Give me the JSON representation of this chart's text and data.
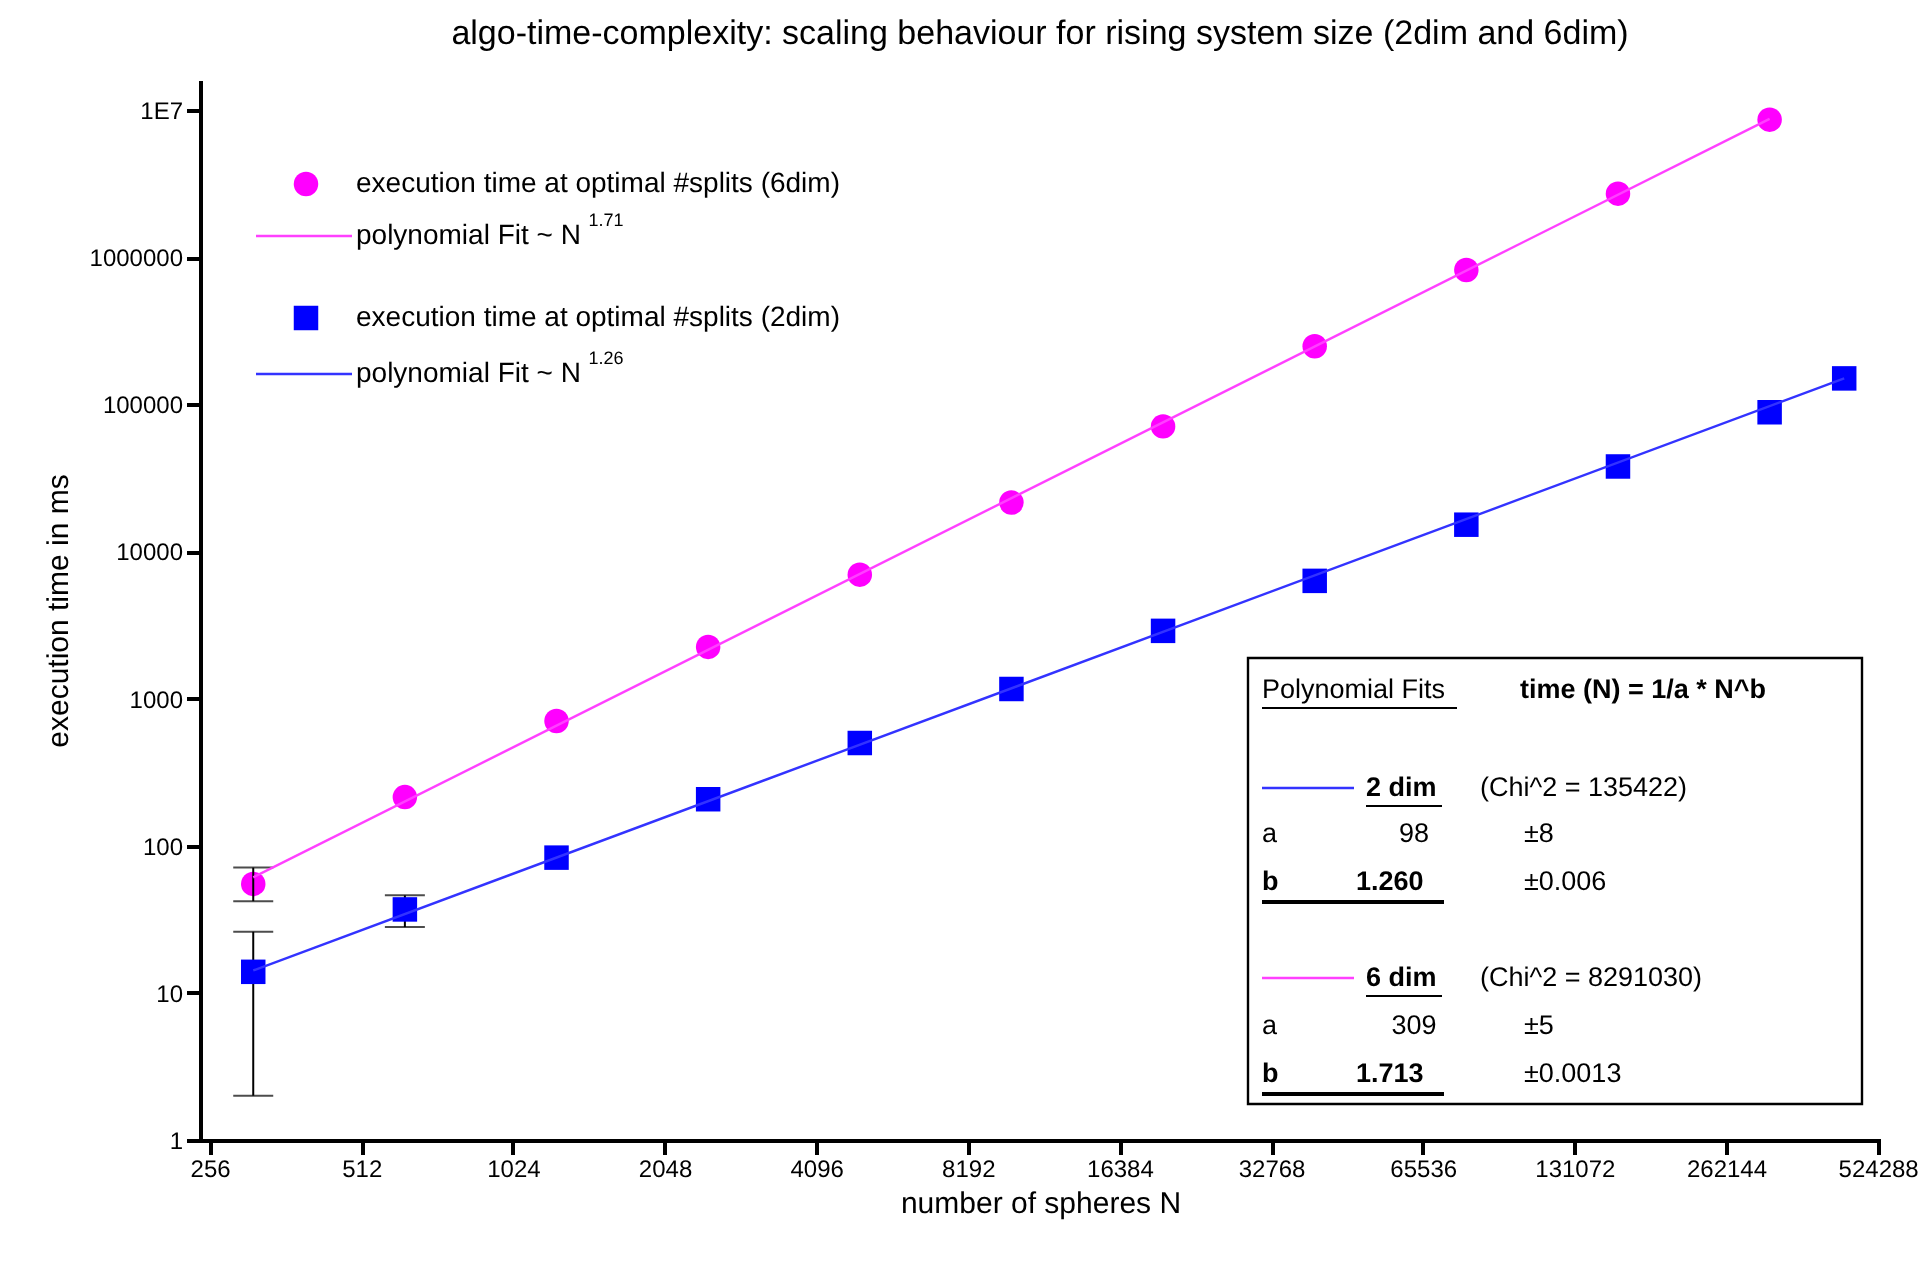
{
  "chart_data": {
    "type": "scatter",
    "title": "algo-time-complexity: scaling behaviour for rising system size (2dim and 6dim)",
    "xlabel": "number of spheres N",
    "ylabel": "execution time in ms",
    "log": "xy",
    "grid": false,
    "legend": "top left",
    "xlim": [
      245,
      530000
    ],
    "xticks": [
      256,
      512,
      1024,
      2048,
      4096,
      8192,
      16384,
      32768,
      65536,
      131072,
      262144,
      524288
    ],
    "ylim": [
      1,
      16000000
    ],
    "yticks": [
      1,
      10,
      100,
      1000,
      10000,
      100000,
      1000000,
      {
        "value": 10000000,
        "label": "1E7"
      }
    ],
    "series": [
      {
        "name": "execution time at optimal #splits (6dim)",
        "type": "scatter",
        "marker": "circle",
        "color": "#ff00ff",
        "x": [
          312.5,
          625,
          1250,
          2500,
          5000,
          10000,
          20000,
          40000,
          80000,
          160000,
          320000
        ],
        "values": [
          55,
          214,
          704,
          2245,
          6950,
          21500,
          70800,
          248000,
          818000,
          2700000,
          8600000
        ],
        "errors": [
          [
            42,
            71
          ],
          null,
          null,
          null,
          null,
          null,
          null,
          null,
          null,
          null,
          null
        ]
      },
      {
        "name": "polynomial Fit ~ N$^{1.71}$",
        "type": "line",
        "color": "#ff40ff",
        "x": [
          312.5,
          320000
        ],
        "values": [
          61,
          8700000
        ]
      },
      {
        "name": "execution time at optimal #splits (2dim)",
        "type": "scatter",
        "marker": "square",
        "color": "#0000ff",
        "x": [
          312.5,
          625,
          1250,
          2500,
          5000,
          10000,
          20000,
          40000,
          80000,
          160000,
          320000,
          450000
        ],
        "values": [
          13.9,
          36.9,
          83,
          207,
          499,
          1162,
          2886,
          6310,
          15200,
          37800,
          88300,
          150000
        ],
        "errors": [
          [
            2,
            26
          ],
          [
            28,
            46
          ],
          null,
          null,
          null,
          null,
          null,
          null,
          null,
          null,
          null,
          null
        ]
      },
      {
        "name": "polynomial Fit ~ N$^{1.26}$",
        "type": "line",
        "color": "#3333ff",
        "x": [
          312.5,
          450000
        ],
        "values": [
          14.2,
          150000
        ]
      }
    ],
    "annotations": [
      "Polynomial Fits",
      "time (N) = 1/a * N^b",
      "2 dim",
      "(Chi^2 = 135422)",
      "a",
      "98",
      "±8",
      "b",
      "1.260",
      "±0.006",
      "6 dim",
      "(Chi^2 = 8291030)",
      "a",
      "309",
      "±5",
      "b",
      "1.713",
      "±0.0013"
    ]
  }
}
